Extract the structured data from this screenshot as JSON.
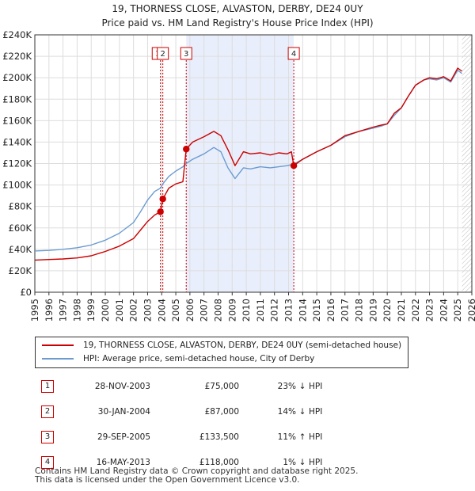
{
  "title_line1": "19, THORNESS CLOSE, ALVASTON, DERBY, DE24 0UY",
  "title_line2": "Price paid vs. HM Land Registry's House Price Index (HPI)",
  "colors": {
    "property": "#cc0000",
    "hpi": "#6b9bd1",
    "shade": "#e8eefb",
    "grid": "#dddddd"
  },
  "chart_data": {
    "type": "line",
    "xlim": [
      1995,
      2026
    ],
    "ylim": [
      0,
      240000
    ],
    "x_ticks": [
      "1995",
      "1996",
      "1997",
      "1998",
      "1999",
      "2000",
      "2001",
      "2002",
      "2003",
      "2004",
      "2005",
      "2006",
      "2007",
      "2008",
      "2009",
      "2010",
      "2011",
      "2012",
      "2013",
      "2014",
      "2015",
      "2016",
      "2017",
      "2018",
      "2019",
      "2020",
      "2021",
      "2022",
      "2023",
      "2024",
      "2025",
      "2026"
    ],
    "y_ticks": [
      {
        "value": 0,
        "label": "£0"
      },
      {
        "value": 20000,
        "label": "£20K"
      },
      {
        "value": 40000,
        "label": "£40K"
      },
      {
        "value": 60000,
        "label": "£60K"
      },
      {
        "value": 80000,
        "label": "£80K"
      },
      {
        "value": 100000,
        "label": "£100K"
      },
      {
        "value": 120000,
        "label": "£120K"
      },
      {
        "value": 140000,
        "label": "£140K"
      },
      {
        "value": 160000,
        "label": "£160K"
      },
      {
        "value": 180000,
        "label": "£180K"
      },
      {
        "value": 200000,
        "label": "£200K"
      },
      {
        "value": 220000,
        "label": "£220K"
      },
      {
        "value": 240000,
        "label": "£240K"
      }
    ],
    "shaded_range": [
      2005.74,
      2013.37
    ],
    "future_hatch_from": 2025.3,
    "series": [
      {
        "name": "19, THORNESS CLOSE, ALVASTON, DERBY, DE24 0UY (semi-detached house)",
        "x": [
          1995,
          1996,
          1997,
          1998,
          1999,
          2000,
          2001,
          2002,
          2002.5,
          2003.0,
          2003.5,
          2003.91,
          2004.08,
          2004.5,
          2005.0,
          2005.5,
          2005.74,
          2006.2,
          2007.0,
          2007.7,
          2008.2,
          2008.7,
          2009.2,
          2009.8,
          2010.3,
          2011.0,
          2011.7,
          2012.3,
          2012.9,
          2013.2,
          2013.37,
          2014.0,
          2015.0,
          2016.0,
          2017.0,
          2018.0,
          2019.0,
          2019.6,
          2020.0,
          2020.5,
          2021.0,
          2021.5,
          2022.0,
          2022.6,
          2023.0,
          2023.5,
          2024.0,
          2024.5,
          2025.0,
          2025.3
        ],
        "y": [
          30000,
          30500,
          31000,
          32000,
          34000,
          38000,
          43000,
          50000,
          58000,
          66000,
          72000,
          75000,
          87000,
          97000,
          101000,
          103000,
          133500,
          140000,
          145000,
          150000,
          146000,
          133000,
          118000,
          131000,
          129000,
          130000,
          128000,
          130000,
          129000,
          131000,
          118000,
          124000,
          131000,
          137000,
          146000,
          150000,
          154000,
          156000,
          157000,
          167000,
          172000,
          183000,
          193000,
          198000,
          200000,
          199000,
          201000,
          197000,
          209000,
          206000
        ]
      },
      {
        "name": "HPI: Average price, semi-detached house, City of Derby",
        "x": [
          1995,
          1996,
          1997,
          1998,
          1999,
          2000,
          2001,
          2002,
          2002.5,
          2003.0,
          2003.5,
          2003.91,
          2004.08,
          2004.5,
          2005.0,
          2005.5,
          2005.74,
          2006.2,
          2007.0,
          2007.7,
          2008.2,
          2008.7,
          2009.2,
          2009.8,
          2010.3,
          2011.0,
          2011.7,
          2012.3,
          2012.9,
          2013.2,
          2013.37,
          2014.0,
          2015.0,
          2016.0,
          2017.0,
          2018.0,
          2019.0,
          2019.6,
          2020.0,
          2020.5,
          2021.0,
          2021.5,
          2022.0,
          2022.6,
          2023.0,
          2023.5,
          2024.0,
          2024.5,
          2025.0,
          2025.3
        ],
        "y": [
          38500,
          39000,
          40000,
          41500,
          44000,
          48500,
          55000,
          65000,
          75000,
          86000,
          94000,
          97000,
          101000,
          108000,
          113000,
          117000,
          120000,
          124000,
          129000,
          135000,
          131000,
          116000,
          106000,
          116000,
          115000,
          117000,
          116000,
          117000,
          118000,
          119000,
          119500,
          124000,
          131000,
          137000,
          145000,
          150000,
          153000,
          155000,
          157000,
          165000,
          172000,
          183000,
          193000,
          198000,
          199000,
          198000,
          200000,
          196000,
          207000,
          204000
        ]
      }
    ],
    "sale_markers": [
      {
        "id": "1",
        "x": 2003.91,
        "y": 75000
      },
      {
        "id": "2",
        "x": 2004.08,
        "y": 87000
      },
      {
        "id": "3",
        "x": 2005.74,
        "y": 133500
      },
      {
        "id": "4",
        "x": 2013.37,
        "y": 118000
      }
    ],
    "event_labels": [
      {
        "id": "1",
        "x": 2003.72
      },
      {
        "id": "2",
        "x": 2004.08
      },
      {
        "id": "3",
        "x": 2005.74
      },
      {
        "id": "4",
        "x": 2013.37
      }
    ]
  },
  "legend": {
    "property": "19, THORNESS CLOSE, ALVASTON, DERBY, DE24 0UY (semi-detached house)",
    "hpi": "HPI: Average price, semi-detached house, City of Derby"
  },
  "transactions": [
    {
      "num": "1",
      "date": "28-NOV-2003",
      "price": "£75,000",
      "pct": "23%",
      "arrow": "↓",
      "ref": "HPI"
    },
    {
      "num": "2",
      "date": "30-JAN-2004",
      "price": "£87,000",
      "pct": "14%",
      "arrow": "↓",
      "ref": "HPI"
    },
    {
      "num": "3",
      "date": "29-SEP-2005",
      "price": "£133,500",
      "pct": "11%",
      "arrow": "↑",
      "ref": "HPI"
    },
    {
      "num": "4",
      "date": "16-MAY-2013",
      "price": "£118,000",
      "pct": "1%",
      "arrow": "↓",
      "ref": "HPI"
    }
  ],
  "footer": {
    "line1": "Contains HM Land Registry data © Crown copyright and database right 2025.",
    "line2": "This data is licensed under the Open Government Licence v3.0."
  }
}
